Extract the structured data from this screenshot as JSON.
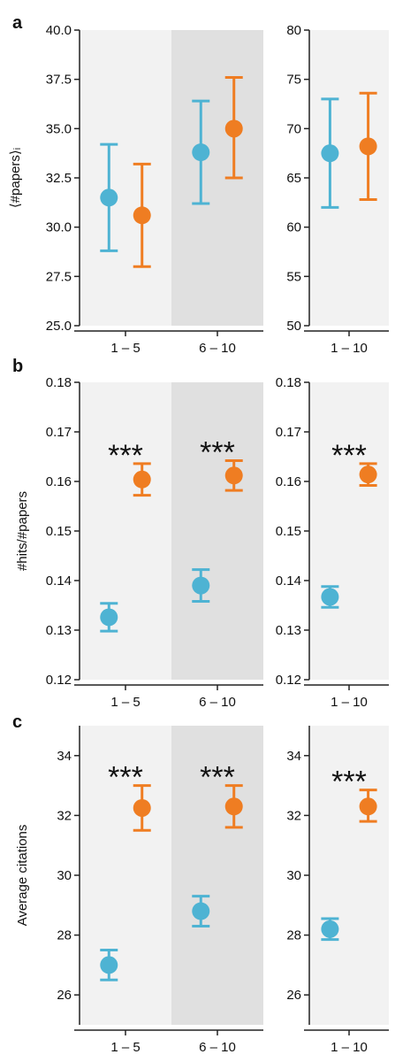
{
  "colors": {
    "blue": "#4eb3d3",
    "orange": "#ef7d22",
    "bg_light": "#f2f2f2",
    "bg_dark": "#e0e0e0"
  },
  "chart_data": [
    {
      "type": "scatter",
      "panel": "a",
      "subplot": "left",
      "ylabel": "⟨#papers⟩ᵢ",
      "ylim": [
        25.0,
        40.0
      ],
      "yticks": [
        "25.0",
        "27.5",
        "30.0",
        "32.5",
        "35.0",
        "37.5",
        "40.0"
      ],
      "categories": [
        "1 – 5",
        "6 – 10"
      ],
      "series": [
        {
          "color": "blue",
          "values": [
            31.5,
            33.8
          ],
          "err_low": [
            28.8,
            31.2
          ],
          "err_high": [
            34.2,
            36.4
          ]
        },
        {
          "color": "orange",
          "values": [
            30.6,
            35.0
          ],
          "err_low": [
            28.0,
            32.5
          ],
          "err_high": [
            33.2,
            37.6
          ]
        }
      ],
      "annotations": [
        "",
        ""
      ]
    },
    {
      "type": "scatter",
      "panel": "a",
      "subplot": "right",
      "ylim": [
        50,
        80
      ],
      "yticks": [
        "50",
        "55",
        "60",
        "65",
        "70",
        "75",
        "80"
      ],
      "categories": [
        "1 – 10"
      ],
      "series": [
        {
          "color": "blue",
          "values": [
            67.5
          ],
          "err_low": [
            62.0
          ],
          "err_high": [
            73.0
          ]
        },
        {
          "color": "orange",
          "values": [
            68.2
          ],
          "err_low": [
            62.8
          ],
          "err_high": [
            73.6
          ]
        }
      ],
      "annotations": [
        ""
      ]
    },
    {
      "type": "scatter",
      "panel": "b",
      "subplot": "left",
      "ylabel": "#hits/#papers",
      "ylim": [
        0.12,
        0.18
      ],
      "yticks": [
        "0.12",
        "0.13",
        "0.14",
        "0.15",
        "0.16",
        "0.17",
        "0.18"
      ],
      "categories": [
        "1 – 5",
        "6 – 10"
      ],
      "series": [
        {
          "color": "blue",
          "values": [
            0.1326,
            0.139
          ],
          "err_low": [
            0.1298,
            0.1358
          ],
          "err_high": [
            0.1354,
            0.1422
          ]
        },
        {
          "color": "orange",
          "values": [
            0.1604,
            0.1612
          ],
          "err_low": [
            0.1572,
            0.1582
          ],
          "err_high": [
            0.1636,
            0.1642
          ]
        }
      ],
      "annotations": [
        "***",
        "***"
      ]
    },
    {
      "type": "scatter",
      "panel": "b",
      "subplot": "right",
      "ylim": [
        0.12,
        0.18
      ],
      "yticks": [
        "0.12",
        "0.13",
        "0.14",
        "0.15",
        "0.16",
        "0.17",
        "0.18"
      ],
      "categories": [
        "1 – 10"
      ],
      "series": [
        {
          "color": "blue",
          "values": [
            0.1367
          ],
          "err_low": [
            0.1346
          ],
          "err_high": [
            0.1388
          ]
        },
        {
          "color": "orange",
          "values": [
            0.1614
          ],
          "err_low": [
            0.1592
          ],
          "err_high": [
            0.1636
          ]
        }
      ],
      "annotations": [
        "***"
      ]
    },
    {
      "type": "scatter",
      "panel": "c",
      "subplot": "left",
      "ylabel": "Average citations",
      "ylim": [
        25,
        35
      ],
      "yticks": [
        "26",
        "28",
        "30",
        "32",
        "34"
      ],
      "categories": [
        "1 – 5",
        "6 – 10"
      ],
      "series": [
        {
          "color": "blue",
          "values": [
            27.0,
            28.8
          ],
          "err_low": [
            26.5,
            28.3
          ],
          "err_high": [
            27.5,
            29.3
          ]
        },
        {
          "color": "orange",
          "values": [
            32.25,
            32.3
          ],
          "err_low": [
            31.5,
            31.6
          ],
          "err_high": [
            33.0,
            33.0
          ]
        }
      ],
      "annotations": [
        "***",
        "***"
      ]
    },
    {
      "type": "scatter",
      "panel": "c",
      "subplot": "right",
      "ylim": [
        25,
        35
      ],
      "yticks": [
        "26",
        "28",
        "30",
        "32",
        "34"
      ],
      "categories": [
        "1 – 10"
      ],
      "series": [
        {
          "color": "blue",
          "values": [
            28.2
          ],
          "err_low": [
            27.85
          ],
          "err_high": [
            28.55
          ]
        },
        {
          "color": "orange",
          "values": [
            32.3
          ],
          "err_low": [
            31.8
          ],
          "err_high": [
            32.85
          ]
        }
      ],
      "annotations": [
        "***"
      ]
    }
  ]
}
